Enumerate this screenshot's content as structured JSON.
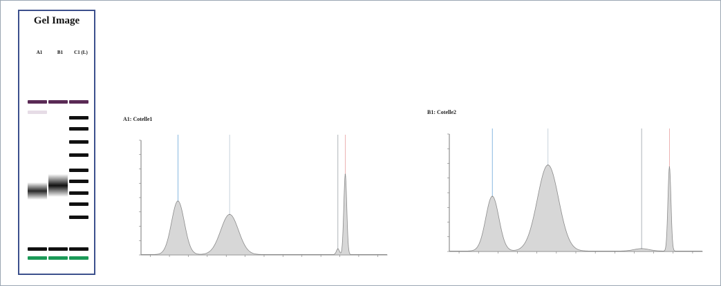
{
  "gel": {
    "title": "Gel Image",
    "lanes": [
      {
        "label": "A1",
        "bands": [
          {
            "pos": 0.115,
            "intensity": 1.0,
            "color": "#5a2a55"
          },
          {
            "pos": 0.17,
            "intensity": 0.35,
            "color": "#b89ab8"
          },
          {
            "pos": 0.59,
            "intensity": 0.9,
            "color": "#111111",
            "width": 0.09
          },
          {
            "pos": 0.9,
            "intensity": 1.0,
            "color": "#111111"
          },
          {
            "pos": 0.945,
            "intensity": 1.0,
            "color": "#1c9a58"
          }
        ]
      },
      {
        "label": "B1",
        "bands": [
          {
            "pos": 0.115,
            "intensity": 1.0,
            "color": "#5a2a55"
          },
          {
            "pos": 0.56,
            "intensity": 1.0,
            "color": "#111111",
            "width": 0.12
          },
          {
            "pos": 0.9,
            "intensity": 1.0,
            "color": "#111111"
          },
          {
            "pos": 0.945,
            "intensity": 1.0,
            "color": "#1c9a58"
          }
        ]
      },
      {
        "label": "C1 (L)",
        "bands": [
          {
            "pos": 0.115,
            "intensity": 1.0,
            "color": "#5a2a55"
          },
          {
            "pos": 0.2,
            "intensity": 1.0,
            "color": "#111111"
          },
          {
            "pos": 0.26,
            "intensity": 1.0,
            "color": "#111111"
          },
          {
            "pos": 0.33,
            "intensity": 1.0,
            "color": "#111111"
          },
          {
            "pos": 0.4,
            "intensity": 1.0,
            "color": "#111111"
          },
          {
            "pos": 0.48,
            "intensity": 1.0,
            "color": "#111111"
          },
          {
            "pos": 0.54,
            "intensity": 1.0,
            "color": "#111111"
          },
          {
            "pos": 0.6,
            "intensity": 1.0,
            "color": "#111111"
          },
          {
            "pos": 0.66,
            "intensity": 1.0,
            "color": "#111111"
          },
          {
            "pos": 0.73,
            "intensity": 1.0,
            "color": "#111111"
          },
          {
            "pos": 0.9,
            "intensity": 1.0,
            "color": "#111111"
          },
          {
            "pos": 0.945,
            "intensity": 1.0,
            "color": "#1c9a58"
          }
        ]
      }
    ]
  },
  "chart_data": [
    {
      "type": "area",
      "title": "A1: Cotelle1",
      "xlabel": "",
      "ylabel": "",
      "xlim": [
        0,
        100
      ],
      "ylim": [
        0,
        1200
      ],
      "peaks": [
        {
          "x": 15,
          "height": 560,
          "sigma": 2.6,
          "marker_color": "#6aa6d8"
        },
        {
          "x": 36,
          "height": 420,
          "sigma": 3.6,
          "marker_color": "#b9c6d2"
        },
        {
          "x": 80,
          "height": 60,
          "sigma": 0.6,
          "marker_color": "#9aa0a6"
        },
        {
          "x": 83,
          "height": 840,
          "sigma": 0.6,
          "marker_color": "#e7a0a0"
        }
      ],
      "peak_labels": [
        "",
        "",
        "",
        ""
      ],
      "x_ticks": [
        "",
        "",
        "",
        "",
        "",
        "",
        "",
        "",
        "",
        "",
        "",
        "",
        ""
      ],
      "y_ticks": [
        "",
        "",
        "",
        "",
        "",
        "",
        "",
        "",
        ""
      ],
      "grid": false
    },
    {
      "type": "area",
      "title": "B1: Cotelle2",
      "xlabel": "",
      "ylabel": "",
      "xlim": [
        0,
        100
      ],
      "ylim": [
        0,
        1200
      ],
      "peaks": [
        {
          "x": 17,
          "height": 560,
          "sigma": 2.6,
          "marker_color": "#6aa6d8"
        },
        {
          "x": 39,
          "height": 880,
          "sigma": 4.2,
          "marker_color": "#b9c6d2"
        },
        {
          "x": 76,
          "height": 25,
          "sigma": 3.0,
          "marker_color": "#9aa0a6"
        },
        {
          "x": 87,
          "height": 860,
          "sigma": 0.6,
          "marker_color": "#e7a0a0"
        }
      ],
      "peak_labels": [
        "",
        "",
        "",
        ""
      ],
      "x_ticks": [
        "",
        "",
        "",
        "",
        "",
        "",
        "",
        "",
        "",
        "",
        "",
        "",
        ""
      ],
      "y_ticks": [
        "",
        "",
        "",
        "",
        "",
        "",
        "",
        "",
        ""
      ],
      "grid": false
    }
  ]
}
